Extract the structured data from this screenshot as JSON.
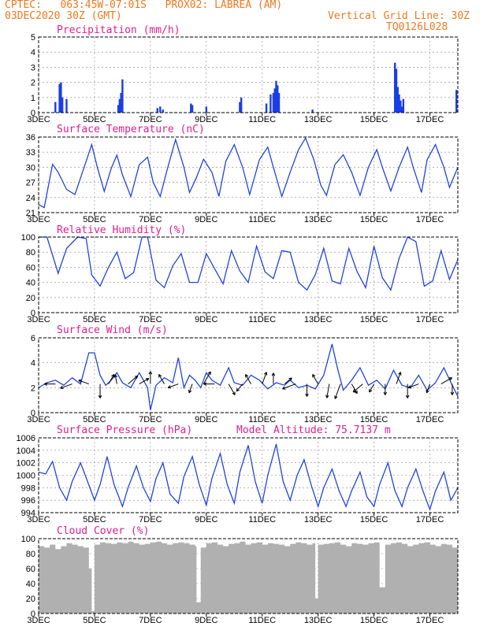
{
  "header": {
    "line1": "CPTEC:   063:45W-07:01S   PROX02: LABREA (AM)",
    "line2": "03DEC2020 30Z (GMT)",
    "grid_note": "Vertical Grid Line: 30Z",
    "code": "TQ0126L028"
  },
  "x_ticks": [
    "3DEC",
    "5DEC",
    "7DEC",
    "9DEC",
    "11DEC",
    "13DEC",
    "15DEC",
    "17DEC"
  ],
  "colors": {
    "line": "#2244dd",
    "bar": "#1a3ee6",
    "cloud": "#b0b0b0",
    "title": "#e0208c",
    "header": "#f07820"
  },
  "chart_data": [
    {
      "type": "bar",
      "title": "Precipitation (mm/h)",
      "ylim": [
        0,
        5
      ],
      "yticks": [
        0,
        1,
        2,
        3,
        4,
        5
      ],
      "x": [
        3.6,
        3.75,
        3.8,
        3.85,
        4.0,
        5.85,
        5.9,
        5.95,
        6.0,
        7.25,
        7.35,
        7.45,
        8.45,
        8.5,
        9.0,
        10.2,
        10.25,
        11.15,
        11.3,
        11.4,
        11.45,
        11.5,
        11.55,
        11.6,
        12.8,
        15.75,
        15.8,
        15.85,
        15.9,
        15.95,
        16.0,
        16.05,
        17.95
      ],
      "values": [
        0.7,
        1.9,
        2.0,
        1.0,
        0.9,
        0.5,
        0.9,
        1.3,
        2.2,
        0.3,
        0.4,
        0.2,
        0.6,
        0.5,
        0.4,
        0.7,
        1.0,
        0.6,
        1.2,
        1.3,
        1.6,
        2.1,
        1.8,
        1.3,
        0.2,
        3.3,
        2.9,
        1.7,
        1.2,
        0.8,
        0.4,
        0.9,
        1.5
      ],
      "grid": true,
      "x_range": [
        3,
        18
      ]
    },
    {
      "type": "line",
      "title": "Surface Temperature (nC)",
      "ylim": [
        21,
        36
      ],
      "yticks": [
        21,
        24,
        27,
        30,
        33,
        36
      ],
      "x": [
        3.0,
        3.2,
        3.5,
        3.7,
        4.0,
        4.3,
        4.6,
        4.9,
        5.1,
        5.35,
        5.6,
        5.8,
        6.0,
        6.3,
        6.6,
        6.9,
        7.1,
        7.35,
        7.6,
        7.9,
        8.2,
        8.4,
        8.65,
        8.9,
        9.2,
        9.45,
        9.7,
        10.0,
        10.3,
        10.55,
        10.9,
        11.2,
        11.4,
        11.7,
        12.0,
        12.3,
        12.55,
        12.85,
        13.1,
        13.3,
        13.6,
        13.9,
        14.2,
        14.5,
        14.8,
        15.1,
        15.3,
        15.6,
        15.9,
        16.2,
        16.4,
        16.7,
        16.9,
        17.2,
        17.5,
        17.7,
        18.0
      ],
      "values": [
        22.6,
        22.0,
        30.6,
        29.0,
        25.6,
        24.6,
        29.5,
        34.5,
        30.0,
        25.2,
        29.8,
        32.4,
        28.5,
        24.2,
        30.5,
        32.0,
        27.0,
        24.2,
        29.5,
        35.5,
        30.0,
        25.0,
        28.0,
        31.6,
        29.0,
        24.2,
        31.2,
        34.5,
        30.0,
        24.6,
        31.5,
        34.0,
        30.0,
        24.2,
        29.0,
        33.5,
        35.8,
        31.5,
        26.4,
        24.4,
        30.5,
        32.5,
        29.0,
        24.4,
        30.0,
        33.5,
        30.0,
        25.3,
        30.0,
        34.0,
        30.0,
        25.0,
        31.5,
        34.5,
        30.0,
        26.0,
        30.0
      ],
      "grid": true,
      "x_range": [
        3,
        18
      ]
    },
    {
      "type": "line",
      "title": "Relative Humidity (%)",
      "ylim": [
        0,
        100
      ],
      "yticks": [
        0,
        20,
        40,
        60,
        80,
        100
      ],
      "x": [
        3.0,
        3.3,
        3.7,
        4.0,
        4.4,
        4.7,
        4.9,
        5.2,
        5.5,
        5.8,
        6.1,
        6.4,
        6.7,
        6.9,
        7.2,
        7.5,
        7.8,
        8.1,
        8.4,
        8.7,
        9.0,
        9.3,
        9.6,
        9.9,
        10.2,
        10.5,
        10.8,
        11.1,
        11.4,
        11.7,
        12.0,
        12.3,
        12.6,
        12.9,
        13.2,
        13.5,
        13.8,
        14.1,
        14.4,
        14.7,
        15.0,
        15.3,
        15.6,
        15.9,
        16.2,
        16.5,
        16.8,
        17.1,
        17.4,
        17.7,
        18.0
      ],
      "values": [
        100,
        100,
        52,
        85,
        100,
        98,
        50,
        35,
        60,
        80,
        45,
        53,
        100,
        100,
        43,
        33,
        62,
        78,
        40,
        40,
        78,
        58,
        38,
        82,
        55,
        40,
        88,
        54,
        45,
        82,
        80,
        40,
        30,
        50,
        85,
        42,
        38,
        85,
        54,
        33,
        88,
        46,
        30,
        72,
        100,
        94,
        35,
        42,
        82,
        44,
        70
      ],
      "grid": true,
      "x_range": [
        3,
        18
      ]
    },
    {
      "type": "line",
      "title": "Surface Wind (m/s)",
      "ylim": [
        0,
        6
      ],
      "yticks": [
        0,
        2,
        4,
        6
      ],
      "x": [
        3.0,
        3.3,
        3.6,
        3.9,
        4.2,
        4.5,
        4.8,
        5.0,
        5.2,
        5.4,
        5.6,
        5.8,
        6.0,
        6.3,
        6.6,
        6.9,
        7.0,
        7.2,
        7.5,
        7.8,
        8.0,
        8.2,
        8.4,
        8.6,
        8.8,
        9.0,
        9.2,
        9.5,
        9.8,
        10.0,
        10.3,
        10.6,
        10.9,
        11.2,
        11.5,
        11.8,
        12.0,
        12.3,
        12.6,
        12.9,
        13.2,
        13.5,
        13.6,
        13.7,
        13.9,
        14.2,
        14.5,
        14.8,
        15.1,
        15.4,
        15.7,
        16.0,
        16.3,
        16.6,
        16.9,
        17.2,
        17.5,
        17.8,
        18.0
      ],
      "values": [
        2.0,
        2.4,
        2.6,
        2.2,
        2.8,
        2.3,
        4.8,
        4.8,
        3.0,
        2.2,
        2.6,
        3.2,
        2.4,
        2.0,
        3.2,
        2.0,
        0.2,
        2.2,
        2.8,
        2.4,
        4.4,
        2.0,
        3.0,
        2.6,
        2.0,
        3.2,
        2.6,
        2.2,
        3.6,
        2.4,
        2.2,
        3.0,
        2.6,
        1.9,
        2.4,
        2.2,
        2.6,
        2.0,
        2.2,
        1.9,
        3.0,
        5.5,
        4.5,
        3.5,
        1.8,
        2.6,
        3.6,
        2.2,
        2.6,
        1.9,
        3.4,
        2.2,
        2.0,
        3.0,
        1.8,
        2.4,
        3.6,
        2.2,
        1.3
      ],
      "grid": true,
      "x_range": [
        3,
        18
      ]
    },
    {
      "type": "line",
      "title": "Surface Pressure (hPa)",
      "annotation": "Model Altitude: 75.7137 m",
      "ylim": [
        994,
        1006
      ],
      "yticks": [
        994,
        996,
        998,
        1000,
        1002,
        1004,
        1006
      ],
      "x": [
        3.0,
        3.25,
        3.5,
        3.75,
        4.0,
        4.2,
        4.5,
        4.75,
        5.0,
        5.2,
        5.45,
        5.7,
        6.0,
        6.2,
        6.5,
        6.75,
        7.0,
        7.2,
        7.45,
        7.7,
        8.0,
        8.2,
        8.5,
        8.75,
        9.0,
        9.2,
        9.5,
        9.75,
        10.0,
        10.2,
        10.5,
        10.75,
        11.0,
        11.2,
        11.5,
        11.75,
        12.0,
        12.25,
        12.5,
        12.75,
        13.0,
        13.2,
        13.5,
        13.75,
        14.0,
        14.2,
        14.5,
        14.75,
        15.0,
        15.2,
        15.5,
        15.75,
        16.0,
        16.2,
        16.5,
        16.75,
        17.0,
        17.2,
        17.5,
        17.75,
        18.0
      ],
      "values": [
        1000.5,
        1000.2,
        1002.2,
        998.0,
        996.0,
        999.0,
        1002.0,
        999.0,
        996.0,
        998.5,
        1003.0,
        998.5,
        995.0,
        998.0,
        1001.5,
        998.0,
        995.8,
        999.5,
        1002.0,
        997.0,
        995.5,
        999.8,
        1003.0,
        998.5,
        995.2,
        999.5,
        1003.5,
        998.5,
        995.5,
        1000.5,
        1004.8,
        999.0,
        995.5,
        1000.0,
        1005.0,
        999.0,
        996.0,
        1000.0,
        1002.5,
        998.5,
        995.0,
        998.0,
        1001.0,
        997.5,
        995.0,
        997.5,
        1000.5,
        996.5,
        995.0,
        998.5,
        1002.0,
        997.5,
        995.0,
        998.0,
        1001.0,
        997.5,
        994.5,
        997.5,
        1000.5,
        996.0,
        998.0
      ],
      "grid": true,
      "x_range": [
        3,
        18
      ]
    },
    {
      "type": "bar",
      "title": "Cloud Cover (%)",
      "ylim": [
        0,
        100
      ],
      "yticks": [
        0,
        20,
        40,
        60,
        80,
        100
      ],
      "grid": true,
      "x_range": [
        3,
        18
      ],
      "x": [
        3.0,
        3.2,
        3.4,
        3.6,
        3.8,
        4.0,
        4.2,
        4.4,
        4.6,
        4.8,
        4.9,
        5.0,
        5.2,
        5.4,
        5.6,
        5.8,
        6.0,
        6.2,
        6.4,
        6.6,
        6.8,
        7.0,
        7.2,
        7.4,
        7.6,
        7.8,
        8.0,
        8.2,
        8.4,
        8.6,
        8.65,
        8.8,
        9.0,
        9.2,
        9.4,
        9.6,
        9.8,
        10.0,
        10.2,
        10.4,
        10.6,
        10.8,
        11.0,
        11.2,
        11.4,
        11.6,
        11.8,
        12.0,
        12.2,
        12.4,
        12.6,
        12.8,
        12.9,
        13.0,
        13.2,
        13.4,
        13.6,
        13.8,
        14.0,
        14.2,
        14.4,
        14.6,
        14.8,
        15.0,
        15.2,
        15.4,
        15.6,
        15.8,
        16.0,
        16.2,
        16.4,
        16.6,
        16.8,
        17.0,
        17.2,
        17.4,
        17.6,
        17.8,
        18.0
      ],
      "values": [
        90,
        88,
        92,
        86,
        90,
        94,
        92,
        90,
        88,
        60,
        3,
        92,
        95,
        94,
        93,
        95,
        94,
        96,
        94,
        92,
        93,
        95,
        96,
        94,
        92,
        94,
        95,
        94,
        92,
        90,
        15,
        88,
        94,
        95,
        92,
        90,
        93,
        94,
        96,
        92,
        94,
        95,
        92,
        94,
        93,
        92,
        90,
        93,
        95,
        94,
        92,
        94,
        20,
        92,
        93,
        94,
        95,
        92,
        90,
        94,
        93,
        92,
        94,
        95,
        35,
        92,
        94,
        95,
        93,
        90,
        92,
        94,
        95,
        92,
        90,
        93,
        92,
        88,
        90
      ]
    }
  ],
  "wind_arrows": {
    "x": [
      3.6,
      4.2,
      4.8,
      5.2,
      5.5,
      5.8,
      6.2,
      6.6,
      7.0,
      7.5,
      8.0,
      8.5,
      8.9,
      9.3,
      9.8,
      10.3,
      10.6,
      11.0,
      11.4,
      11.8,
      12.2,
      12.6,
      13.0,
      13.4,
      13.8,
      14.2,
      14.6,
      15.0,
      15.4,
      15.8,
      16.2,
      16.6,
      17.0,
      17.4,
      17.8
    ],
    "angle_deg": [
      180,
      200,
      160,
      270,
      60,
      100,
      40,
      30,
      90,
      120,
      200,
      250,
      60,
      180,
      300,
      230,
      120,
      70,
      90,
      40,
      200,
      270,
      120,
      260,
      250,
      300,
      220,
      240,
      270,
      70,
      270,
      200,
      250,
      30,
      270
    ],
    "len": [
      14,
      16,
      14,
      18,
      14,
      12,
      16,
      14,
      16,
      14,
      14,
      12,
      18,
      14,
      16,
      12,
      14,
      16,
      14,
      12,
      18,
      16,
      14,
      18,
      20,
      14,
      16,
      12,
      14,
      16,
      18,
      14,
      12,
      16,
      14
    ]
  }
}
